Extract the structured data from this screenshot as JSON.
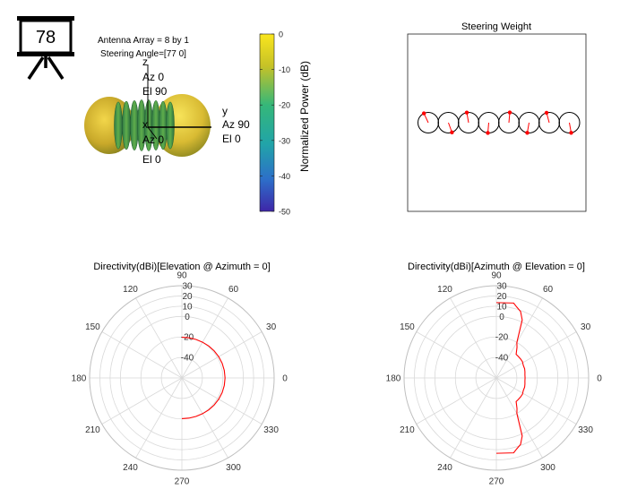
{
  "badge": {
    "number": "78",
    "icon": "presentation-board-icon"
  },
  "pattern3d": {
    "title_lines": [
      "Antenna Array = 8 by 1",
      "Steering Angle=[77 0]"
    ],
    "axes": {
      "z": [
        "z",
        "Az 0",
        "El 90"
      ],
      "y": [
        "y",
        "Az 90",
        "El 0"
      ],
      "x": [
        "x",
        "Az 0",
        "El 0"
      ]
    },
    "colorbar": {
      "label": "Normalized Power (dB)",
      "ticks": [
        "0",
        "-10",
        "-20",
        "-30",
        "-40",
        "-50"
      ],
      "colormap": [
        "#fae61e",
        "#a4be28",
        "#35b779",
        "#21a4a8",
        "#2d6fc9",
        "#3e26a8"
      ]
    },
    "surface_colors": [
      "#8aa32c",
      "#3f9a58",
      "#c9b832",
      "#e6c83a"
    ]
  },
  "steering": {
    "title": "Steering Weight",
    "element_count": 8,
    "line_color": "#000000",
    "weight_color": "#ff0000",
    "phases_deg": [
      115,
      -70,
      100,
      -95,
      85,
      -100,
      105,
      -80
    ]
  },
  "polar_common": {
    "angle_labels": [
      "0",
      "30",
      "60",
      "90",
      "120",
      "150",
      "180",
      "210",
      "240",
      "270",
      "300",
      "330"
    ],
    "radial_labels": [
      "30",
      "20",
      "10",
      "0",
      "-20",
      "-40"
    ],
    "grid_color": "#d9d9d9",
    "trace_color": "#ff0000"
  },
  "chart_data": [
    {
      "type": "polar",
      "title": "Directivity(dBi)[Elevation @ Azimuth = 0]",
      "angle_deg": [
        90,
        80,
        70,
        60,
        50,
        40,
        30,
        20,
        10,
        0,
        -10,
        -20,
        -30,
        -40,
        -50,
        -60,
        -70,
        -80,
        -90
      ],
      "r_dbi": [
        -20.3,
        -20.2,
        -20.0,
        -19.7,
        -19.3,
        -18.9,
        -18.5,
        -18.2,
        -18.0,
        -17.9,
        -18.0,
        -18.2,
        -18.5,
        -18.9,
        -19.3,
        -19.7,
        -20.0,
        -20.2,
        -20.3
      ],
      "rlim": [
        -60,
        30
      ]
    },
    {
      "type": "polar",
      "title": "Directivity(dBi)[Azimuth @ Elevation = 0]",
      "angle_deg": [
        90,
        77,
        74,
        70,
        66,
        60,
        56,
        50,
        45,
        38,
        32,
        25,
        18,
        12,
        6,
        0,
        -6,
        -12,
        -18,
        -25,
        -32,
        -38,
        -45,
        -50,
        -56,
        -60,
        -66,
        -70,
        -74,
        -77,
        -90
      ],
      "r_dbi": [
        13.5,
        15.0,
        12.0,
        9.0,
        2.0,
        -20.0,
        -24.0,
        -30.0,
        -30.0,
        -30.0,
        -30.0,
        -31.0,
        -31.0,
        -31.5,
        -32.0,
        -32.0,
        -32.0,
        -31.5,
        -31.0,
        -31.0,
        -30.0,
        -30.0,
        -30.0,
        -30.0,
        -24.0,
        -20.0,
        2.0,
        9.0,
        12.0,
        15.0,
        13.5
      ],
      "rlim": [
        -60,
        30
      ]
    }
  ]
}
